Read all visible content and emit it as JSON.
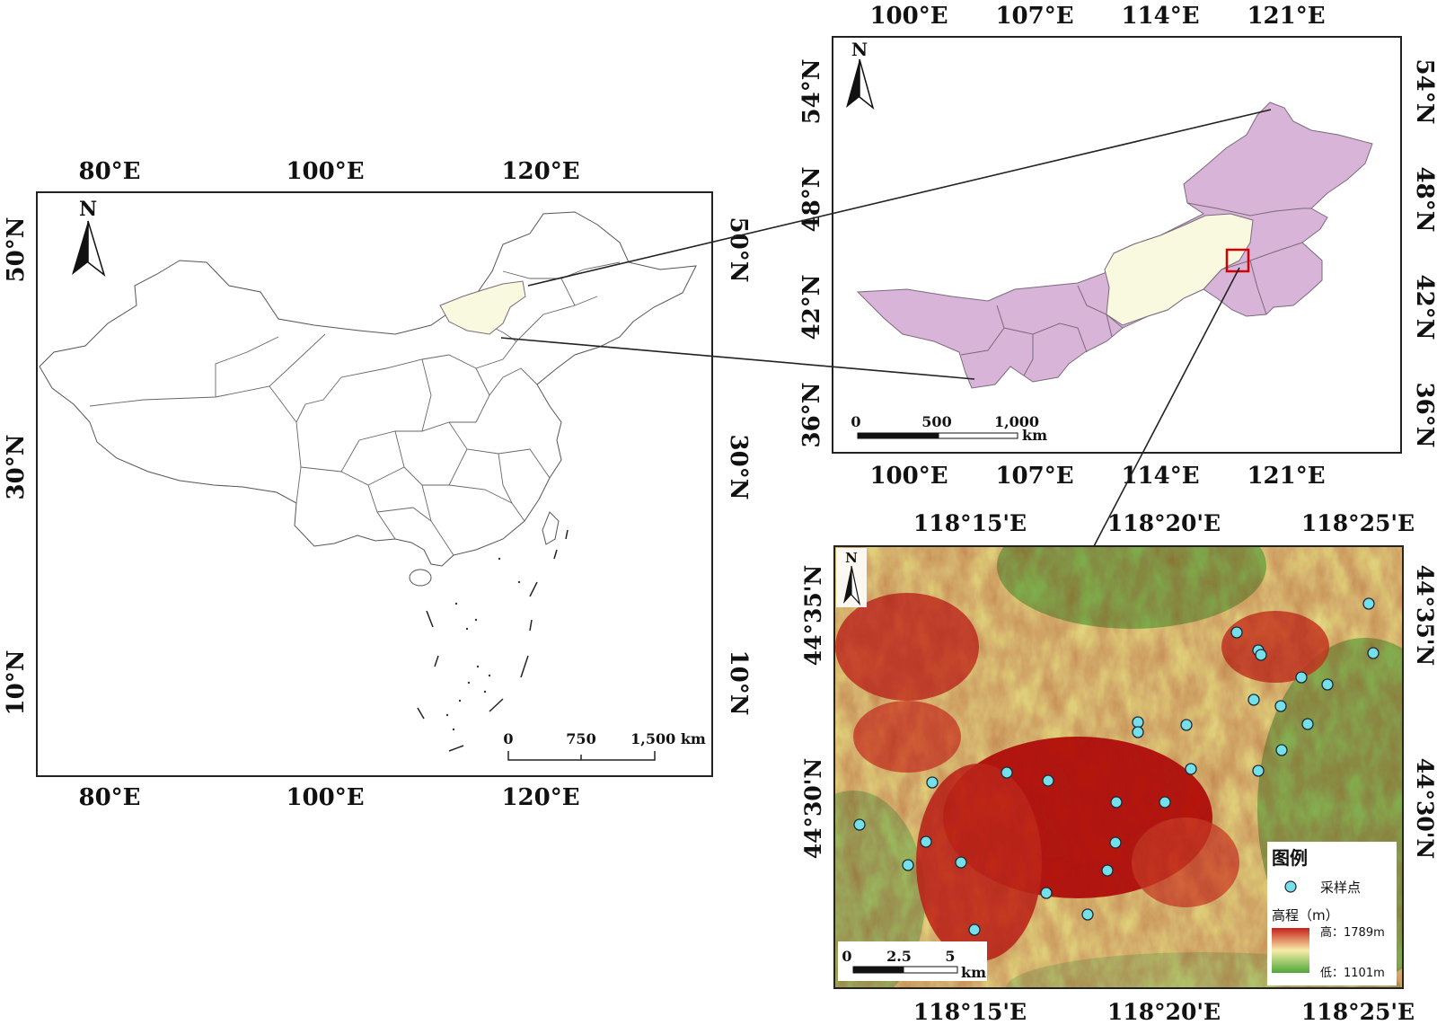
{
  "colors": {
    "inner_mongolia_fill": "#d9b4d9",
    "study_area_fill": "#f8f9df",
    "marker_fill": "#76e0ea",
    "elev_high": "#c8201a",
    "elev_low": "#4ea83a",
    "extent_box": "#d40000"
  },
  "china_map": {
    "top_ticks": [
      "80°E",
      "100°E",
      "120°E"
    ],
    "bottom_ticks": [
      "80°E",
      "100°E",
      "120°E"
    ],
    "left_ticks": [
      "50°N",
      "30°N",
      "10°N"
    ],
    "right_ticks": [
      "50°N",
      "30°N",
      "10°N"
    ],
    "north": "N",
    "scale_labels": [
      "0",
      "750",
      "1,500 km"
    ]
  },
  "region_map": {
    "top_ticks": [
      "100°E",
      "107°E",
      "114°E",
      "121°E"
    ],
    "bottom_ticks": [
      "100°E",
      "107°E",
      "114°E",
      "121°E"
    ],
    "left_ticks": [
      "54°N",
      "48°N",
      "42°N",
      "36°N"
    ],
    "right_ticks": [
      "54°N",
      "48°N",
      "42°N",
      "36°N"
    ],
    "north": "N",
    "scale_labels": [
      "0",
      "500",
      "1,000"
    ],
    "scale_unit": "km"
  },
  "dem_map": {
    "top_ticks": [
      "118°15'E",
      "118°20'E",
      "118°25'E"
    ],
    "bottom_ticks": [
      "118°15'E",
      "118°20'E",
      "118°25'E"
    ],
    "left_ticks": [
      "44°35'N",
      "44°30'N"
    ],
    "right_ticks": [
      "44°35'N",
      "44°30'N"
    ],
    "north": "N",
    "scale_labels": [
      "0",
      "2.5",
      "5"
    ],
    "scale_unit": "km",
    "legend": {
      "title": "图例",
      "point_label": "采样点",
      "elev_title": "高程（m）",
      "high_label": "高：1789m",
      "low_label": "低：1101m"
    }
  }
}
